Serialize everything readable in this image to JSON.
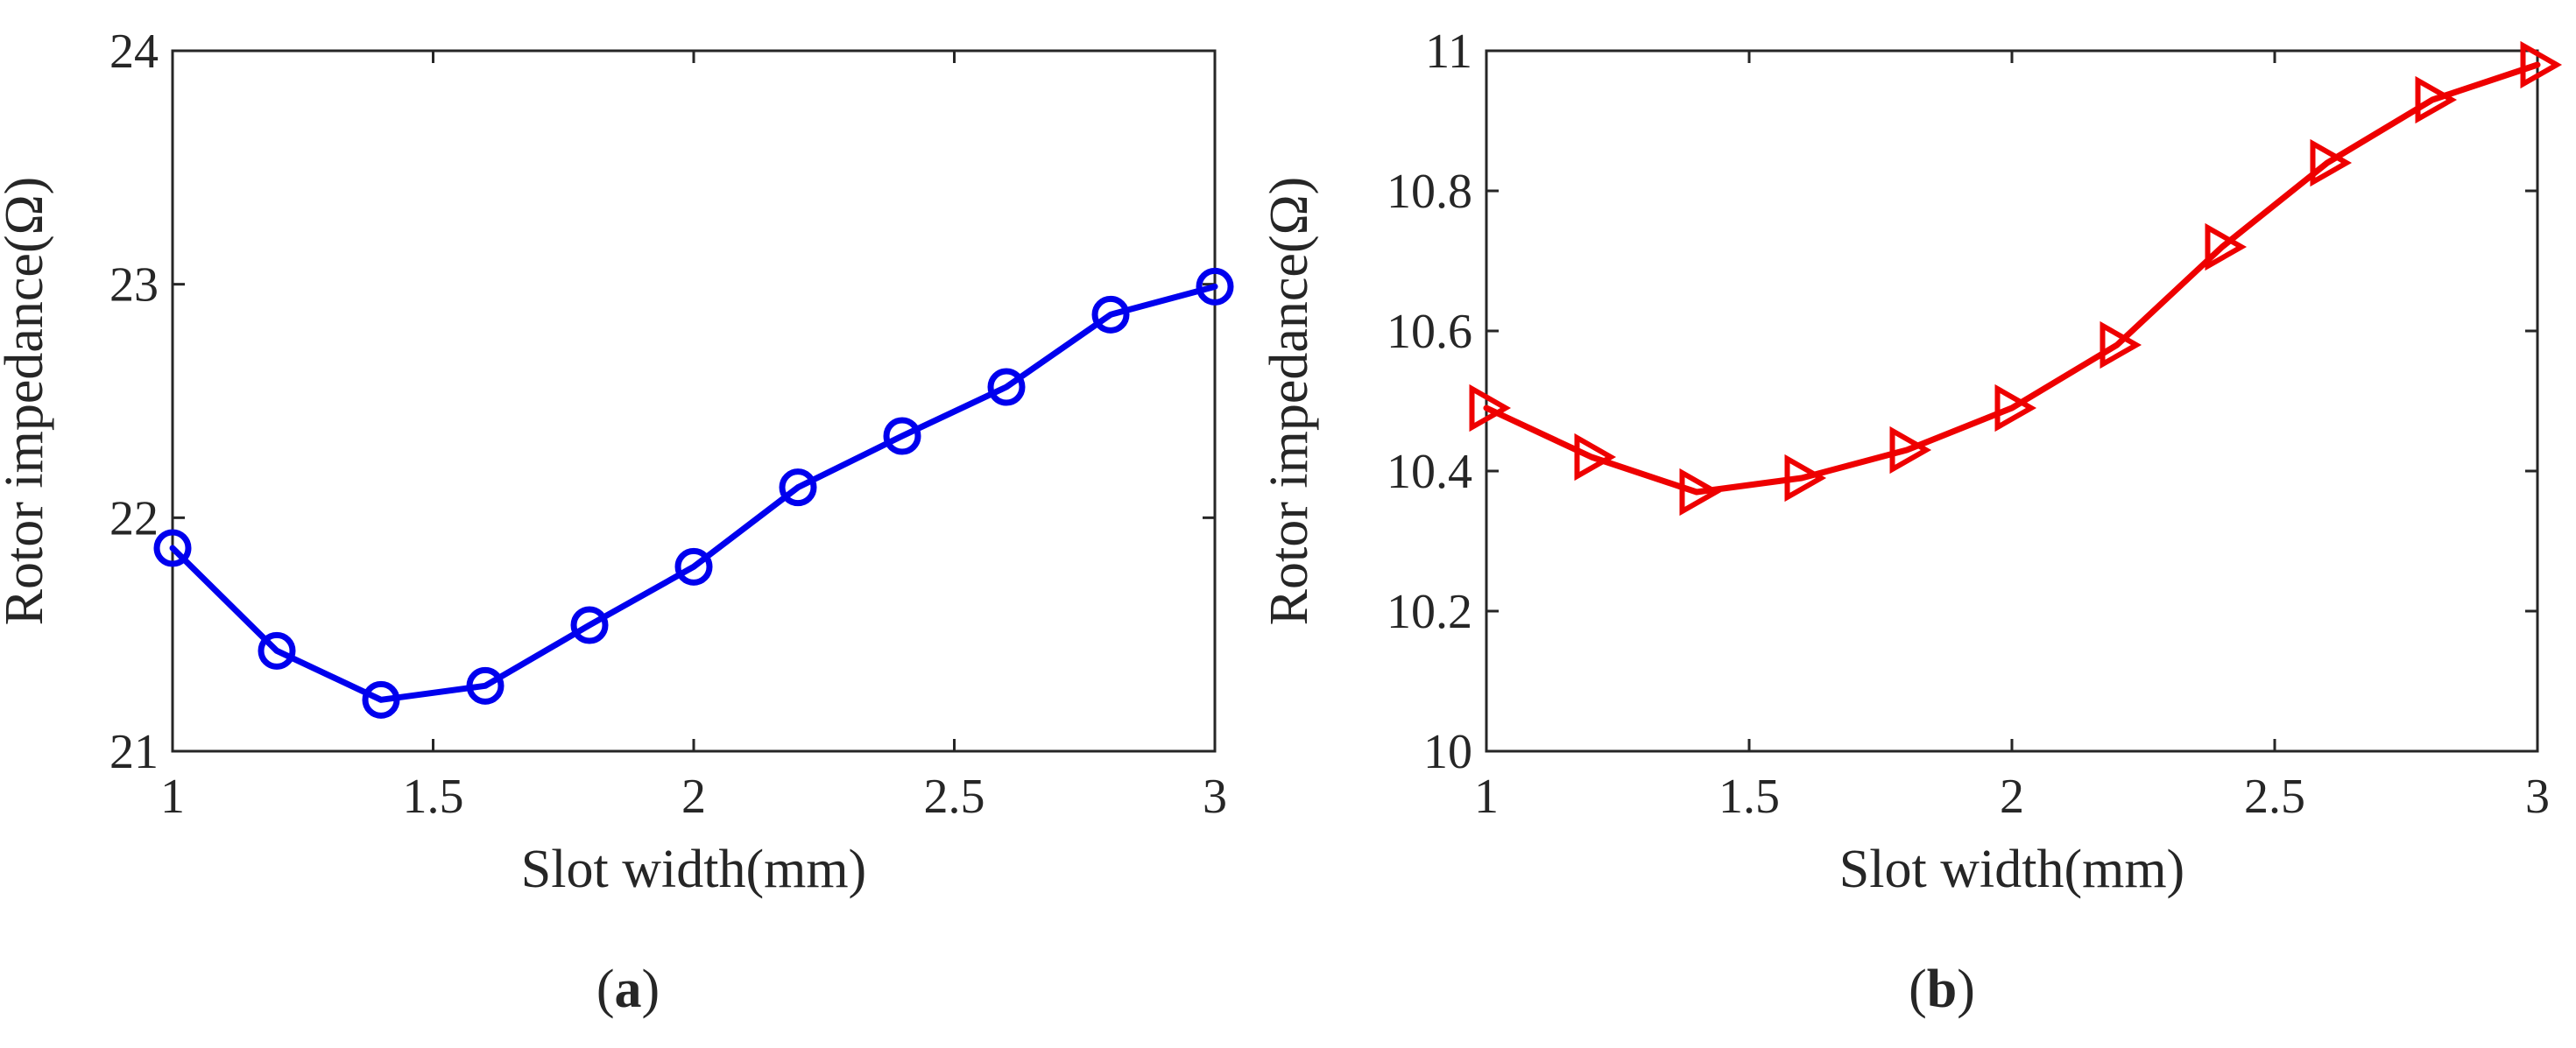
{
  "chart_data": [
    {
      "type": "line",
      "panel_label": "a",
      "xlabel": "Slot width(mm)",
      "ylabel": "Rotor impedance(Ω)",
      "xlim": [
        1,
        3
      ],
      "ylim": [
        21,
        24
      ],
      "xticks": [
        1,
        1.5,
        2,
        2.5,
        3
      ],
      "yticks": [
        21,
        22,
        23,
        24
      ],
      "xtick_labels": [
        "1",
        "1.5",
        "2",
        "2.5",
        "3"
      ],
      "ytick_labels": [
        "21",
        "22",
        "23",
        "24"
      ],
      "grid": false,
      "series": [
        {
          "name": "Rotor impedance",
          "color": "#0000ee",
          "marker": "circle",
          "x": [
            1.0,
            1.2,
            1.4,
            1.6,
            1.8,
            2.0,
            2.2,
            2.4,
            2.6,
            2.8,
            3.0
          ],
          "y": [
            21.87,
            21.43,
            21.22,
            21.28,
            21.54,
            21.79,
            22.13,
            22.35,
            22.56,
            22.87,
            22.99
          ]
        }
      ]
    },
    {
      "type": "line",
      "panel_label": "b",
      "xlabel": "Slot width(mm)",
      "ylabel": "Rotor impedance(Ω)",
      "xlim": [
        1,
        3
      ],
      "ylim": [
        10,
        11
      ],
      "xticks": [
        1,
        1.5,
        2,
        2.5,
        3
      ],
      "yticks": [
        10,
        10.2,
        10.4,
        10.6,
        10.8,
        11
      ],
      "xtick_labels": [
        "1",
        "1.5",
        "2",
        "2.5",
        "3"
      ],
      "ytick_labels": [
        "10",
        "10.2",
        "10.4",
        "10.6",
        "10.8",
        "11"
      ],
      "grid": false,
      "series": [
        {
          "name": "Rotor impedance",
          "color": "#ee0000",
          "marker": "triangle-right",
          "x": [
            1.0,
            1.2,
            1.4,
            1.6,
            1.8,
            2.0,
            2.2,
            2.4,
            2.6,
            2.8,
            3.0
          ],
          "y": [
            10.49,
            10.42,
            10.37,
            10.39,
            10.43,
            10.49,
            10.58,
            10.72,
            10.84,
            10.93,
            10.98
          ]
        }
      ]
    }
  ]
}
